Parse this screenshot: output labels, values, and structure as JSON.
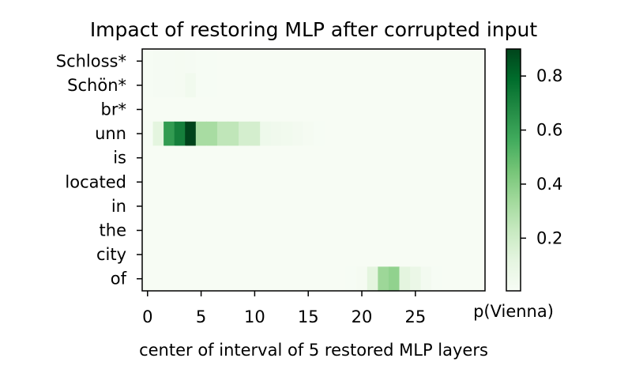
{
  "chart_data": {
    "type": "heatmap",
    "title": "Impact of restoring MLP after corrupted input",
    "xlabel": "center of interval of 5 restored MLP layers",
    "ylabel": "",
    "rows": [
      "Schloss*",
      "Schön*",
      "br*",
      "unn",
      "is",
      "located",
      "in",
      "the",
      "city",
      "of"
    ],
    "x": [
      0,
      1,
      2,
      3,
      4,
      5,
      6,
      7,
      8,
      9,
      10,
      11,
      12,
      13,
      14,
      15,
      16,
      17,
      18,
      19,
      20,
      21,
      22,
      23,
      24,
      25,
      26,
      27,
      28,
      29,
      30,
      31
    ],
    "xticks": [
      0,
      5,
      10,
      15,
      20,
      25
    ],
    "colorbar": {
      "label": "p(Vienna)",
      "range": [
        0.005,
        0.9
      ],
      "ticks": [
        0.2,
        0.4,
        0.6,
        0.8
      ],
      "colormap": "Greens",
      "low_color": "#f7fcf5",
      "high_color": "#00441b"
    },
    "values": [
      [
        0.01,
        0.015,
        0.015,
        0.02,
        0.015,
        0.01,
        0.01,
        0.008,
        0.008,
        0.008,
        0.008,
        0.008,
        0.008,
        0.008,
        0.008,
        0.008,
        0.008,
        0.008,
        0.008,
        0.008,
        0.008,
        0.008,
        0.008,
        0.008,
        0.008,
        0.008,
        0.008,
        0.008,
        0.008,
        0.008,
        0.008,
        0.008
      ],
      [
        0.01,
        0.015,
        0.015,
        0.02,
        0.04,
        0.01,
        0.01,
        0.008,
        0.008,
        0.008,
        0.008,
        0.008,
        0.008,
        0.008,
        0.008,
        0.008,
        0.008,
        0.008,
        0.008,
        0.008,
        0.008,
        0.008,
        0.008,
        0.008,
        0.008,
        0.008,
        0.008,
        0.008,
        0.008,
        0.008,
        0.008,
        0.008
      ],
      [
        0.008,
        0.008,
        0.008,
        0.008,
        0.008,
        0.008,
        0.008,
        0.008,
        0.008,
        0.008,
        0.008,
        0.008,
        0.008,
        0.008,
        0.008,
        0.008,
        0.008,
        0.008,
        0.008,
        0.008,
        0.008,
        0.008,
        0.008,
        0.008,
        0.008,
        0.008,
        0.008,
        0.008,
        0.008,
        0.008,
        0.008,
        0.008
      ],
      [
        0.01,
        0.12,
        0.62,
        0.72,
        0.9,
        0.32,
        0.32,
        0.25,
        0.25,
        0.18,
        0.18,
        0.06,
        0.05,
        0.04,
        0.03,
        0.02,
        0.01,
        0.008,
        0.008,
        0.008,
        0.008,
        0.008,
        0.008,
        0.008,
        0.008,
        0.008,
        0.008,
        0.008,
        0.008,
        0.008,
        0.008,
        0.008
      ],
      [
        0.008,
        0.008,
        0.008,
        0.008,
        0.008,
        0.008,
        0.008,
        0.008,
        0.008,
        0.008,
        0.008,
        0.008,
        0.008,
        0.008,
        0.008,
        0.008,
        0.008,
        0.008,
        0.008,
        0.008,
        0.008,
        0.008,
        0.008,
        0.008,
        0.008,
        0.008,
        0.008,
        0.008,
        0.008,
        0.008,
        0.008,
        0.008
      ],
      [
        0.008,
        0.008,
        0.008,
        0.008,
        0.008,
        0.008,
        0.008,
        0.008,
        0.008,
        0.008,
        0.008,
        0.008,
        0.008,
        0.008,
        0.008,
        0.008,
        0.008,
        0.008,
        0.008,
        0.008,
        0.008,
        0.008,
        0.008,
        0.008,
        0.008,
        0.008,
        0.008,
        0.008,
        0.008,
        0.008,
        0.008,
        0.008
      ],
      [
        0.008,
        0.008,
        0.008,
        0.008,
        0.008,
        0.008,
        0.008,
        0.008,
        0.008,
        0.008,
        0.008,
        0.008,
        0.008,
        0.008,
        0.008,
        0.008,
        0.008,
        0.008,
        0.008,
        0.008,
        0.008,
        0.008,
        0.008,
        0.008,
        0.008,
        0.008,
        0.008,
        0.008,
        0.008,
        0.008,
        0.008,
        0.008
      ],
      [
        0.008,
        0.008,
        0.008,
        0.008,
        0.008,
        0.008,
        0.008,
        0.008,
        0.008,
        0.008,
        0.008,
        0.008,
        0.008,
        0.008,
        0.008,
        0.008,
        0.008,
        0.008,
        0.008,
        0.008,
        0.008,
        0.008,
        0.008,
        0.008,
        0.008,
        0.008,
        0.008,
        0.008,
        0.008,
        0.008,
        0.008,
        0.008
      ],
      [
        0.008,
        0.008,
        0.008,
        0.008,
        0.008,
        0.008,
        0.008,
        0.008,
        0.008,
        0.008,
        0.008,
        0.008,
        0.008,
        0.008,
        0.008,
        0.008,
        0.008,
        0.008,
        0.008,
        0.008,
        0.008,
        0.008,
        0.008,
        0.008,
        0.008,
        0.008,
        0.008,
        0.008,
        0.008,
        0.008,
        0.008,
        0.008
      ],
      [
        0.008,
        0.008,
        0.008,
        0.008,
        0.008,
        0.008,
        0.008,
        0.008,
        0.008,
        0.008,
        0.008,
        0.008,
        0.008,
        0.008,
        0.008,
        0.008,
        0.008,
        0.008,
        0.008,
        0.01,
        0.02,
        0.12,
        0.35,
        0.38,
        0.12,
        0.08,
        0.03,
        0.01,
        0.008,
        0.008,
        0.008,
        0.008
      ]
    ]
  }
}
